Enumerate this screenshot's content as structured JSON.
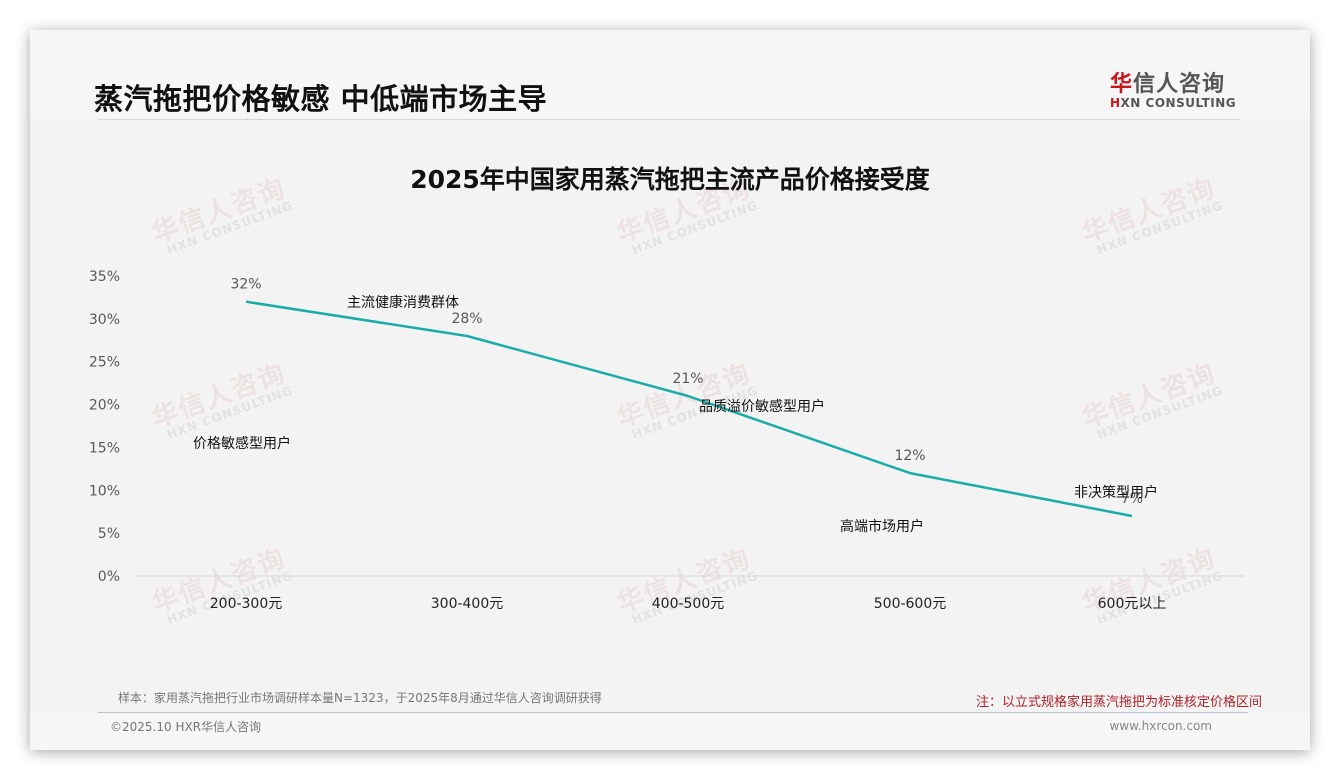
{
  "header": {
    "title": "蒸汽拖把价格敏感 中低端市场主导",
    "logo_cn_first": "华",
    "logo_cn_rest": "信人咨询",
    "logo_en_first": "H",
    "logo_en_rest": "XN CONSULTING"
  },
  "watermark": {
    "cn": "华信人咨询",
    "en": "HXN CONSULTING"
  },
  "colors": {
    "line": "#1aada7",
    "accent_red": "#c8161d",
    "note_red": "#b0222a"
  },
  "chart_data": {
    "type": "line",
    "title": "2025年中国家用蒸汽拖把主流产品价格接受度",
    "xlabel": "",
    "ylabel": "",
    "categories": [
      "200-300元",
      "300-400元",
      "400-500元",
      "500-600元",
      "600元以上"
    ],
    "series": [
      {
        "name": "价格接受度",
        "values": [
          32,
          28,
          21,
          12,
          7
        ]
      }
    ],
    "data_labels": [
      "32%",
      "28%",
      "21%",
      "12%",
      "7%"
    ],
    "segment_labels": [
      "价格敏感型用户",
      "主流健康消费群体",
      "品质溢价敏感型用户",
      "高端市场用户",
      "非决策型用户"
    ],
    "yticks": [
      "0%",
      "5%",
      "10%",
      "15%",
      "20%",
      "25%",
      "30%",
      "35%"
    ],
    "ylim": [
      0,
      35
    ],
    "grid": false,
    "legend": "none"
  },
  "footer": {
    "sample_note": "样本：家用蒸汽拖把行业市场调研样本量N=1323，于2025年8月通过华信人咨询调研获得",
    "red_note": "注：以立式规格家用蒸汽拖把为标准核定价格区间",
    "copyright": "©2025.10 HXR华信人咨询",
    "website": "www.hxrcon.com"
  }
}
